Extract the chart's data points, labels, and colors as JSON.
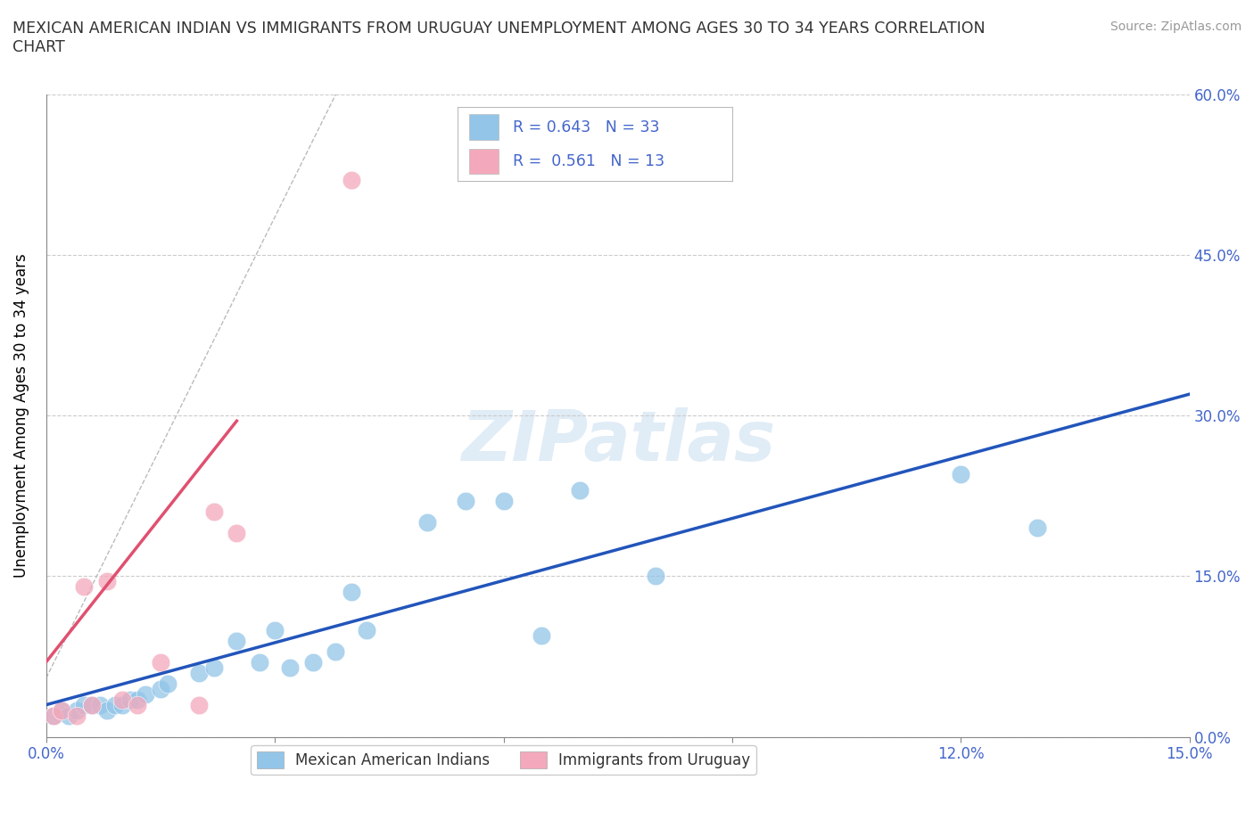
{
  "title": "MEXICAN AMERICAN INDIAN VS IMMIGRANTS FROM URUGUAY UNEMPLOYMENT AMONG AGES 30 TO 34 YEARS CORRELATION\nCHART",
  "source_text": "Source: ZipAtlas.com",
  "ylabel": "Unemployment Among Ages 30 to 34 years",
  "xlim": [
    0.0,
    0.15
  ],
  "ylim": [
    0.0,
    0.6
  ],
  "ytick_vals": [
    0.0,
    0.15,
    0.3,
    0.45,
    0.6
  ],
  "xtick_vals": [
    0.0,
    0.03,
    0.06,
    0.09,
    0.12,
    0.15
  ],
  "blue_color": "#92c5e8",
  "pink_color": "#f4a8bb",
  "blue_line_color": "#2255bb",
  "pink_line_color": "#e05070",
  "tick_label_color": "#4466cc",
  "watermark": "ZIPatlas",
  "R_blue": 0.643,
  "N_blue": 33,
  "R_pink": 0.561,
  "N_pink": 13,
  "blue_scatter_x": [
    0.001,
    0.002,
    0.003,
    0.004,
    0.005,
    0.006,
    0.007,
    0.008,
    0.009,
    0.01,
    0.011,
    0.012,
    0.013,
    0.015,
    0.016,
    0.02,
    0.022,
    0.025,
    0.028,
    0.03,
    0.032,
    0.035,
    0.038,
    0.04,
    0.042,
    0.05,
    0.055,
    0.06,
    0.065,
    0.07,
    0.08,
    0.12,
    0.13
  ],
  "blue_scatter_y": [
    0.02,
    0.025,
    0.02,
    0.025,
    0.03,
    0.03,
    0.03,
    0.025,
    0.03,
    0.03,
    0.035,
    0.035,
    0.04,
    0.045,
    0.05,
    0.06,
    0.065,
    0.09,
    0.07,
    0.1,
    0.065,
    0.07,
    0.08,
    0.135,
    0.1,
    0.2,
    0.22,
    0.22,
    0.095,
    0.23,
    0.15,
    0.245,
    0.195
  ],
  "pink_scatter_x": [
    0.001,
    0.002,
    0.004,
    0.005,
    0.006,
    0.008,
    0.01,
    0.012,
    0.015,
    0.02,
    0.022,
    0.025,
    0.04
  ],
  "pink_scatter_y": [
    0.02,
    0.025,
    0.02,
    0.14,
    0.03,
    0.145,
    0.035,
    0.03,
    0.07,
    0.03,
    0.21,
    0.19,
    0.52
  ],
  "blue_line_x": [
    0.0,
    0.15
  ],
  "blue_line_y": [
    0.03,
    0.32
  ],
  "pink_line_x": [
    0.0,
    0.025
  ],
  "pink_line_y": [
    0.07,
    0.295
  ],
  "gray_line_x": [
    0.0,
    0.038
  ],
  "gray_line_y": [
    0.055,
    0.6
  ],
  "legend_labels": [
    "Mexican American Indians",
    "Immigrants from Uruguay"
  ],
  "background_color": "#ffffff",
  "grid_color": "#cccccc"
}
